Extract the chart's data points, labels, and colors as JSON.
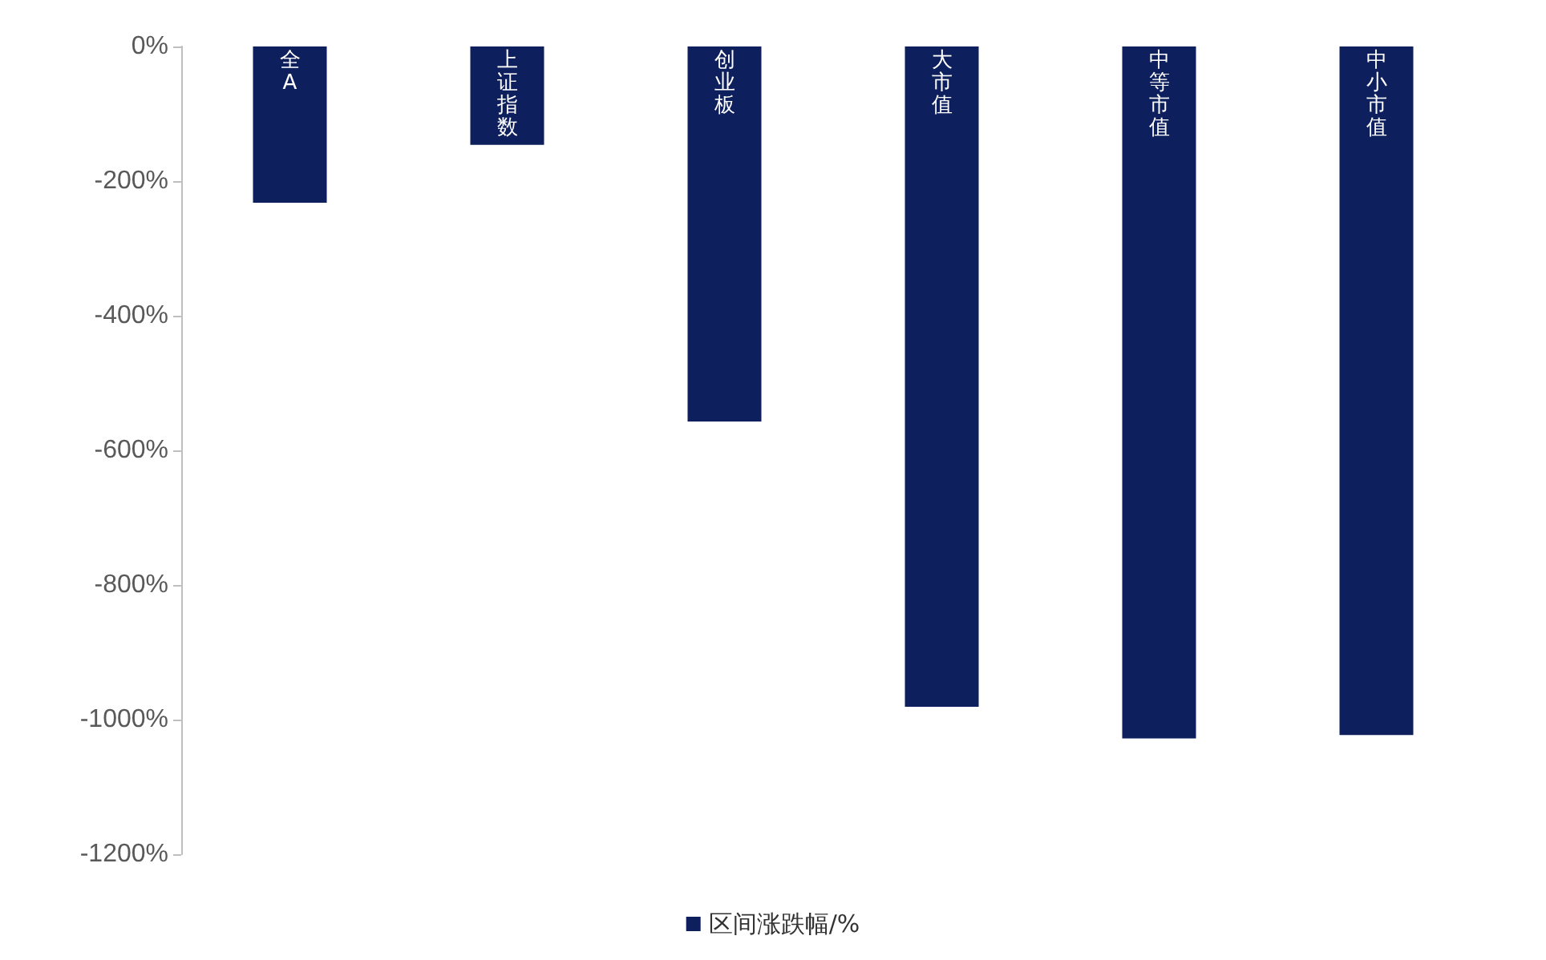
{
  "chart_data": {
    "type": "bar",
    "categories": [
      "全A",
      "上证指数",
      "创业板",
      "大市值",
      "中等市值",
      "中小市值"
    ],
    "series": [
      {
        "name": "区间涨跌幅/%",
        "color": "#0d1f5c",
        "values": [
          -232,
          -146,
          -557,
          -981,
          -1028,
          -1023
        ]
      }
    ],
    "ylim": [
      -1200,
      0
    ],
    "yticks": [
      {
        "value": 0,
        "label": "0%"
      },
      {
        "value": -200,
        "label": "-200%"
      },
      {
        "value": -400,
        "label": "-400%"
      },
      {
        "value": -600,
        "label": "-600%"
      },
      {
        "value": -800,
        "label": "-800%"
      },
      {
        "value": -1000,
        "label": "-1000%"
      },
      {
        "value": -1200,
        "label": "-1200%"
      }
    ],
    "grid": false,
    "legend": "bottom"
  }
}
